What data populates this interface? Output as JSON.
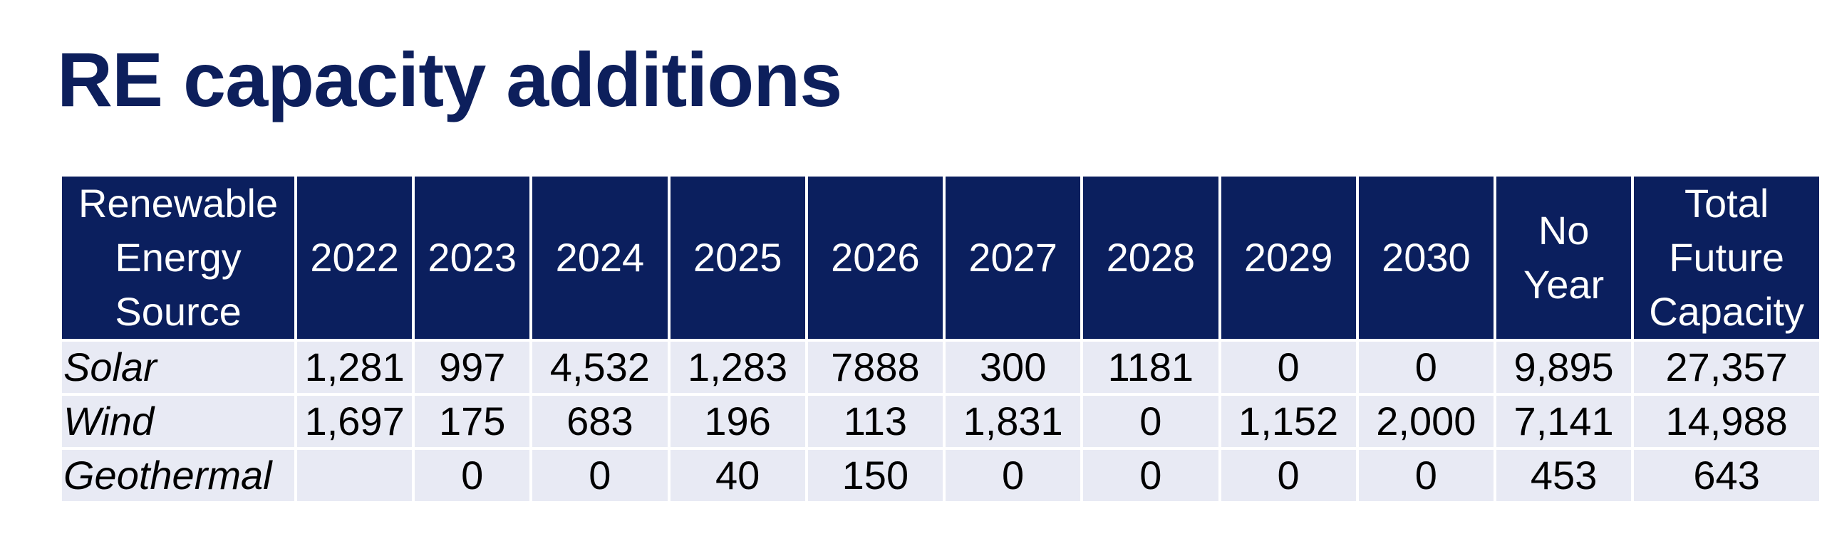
{
  "title": "RE capacity additions",
  "table": {
    "headers": [
      "Renewable Energy Source",
      "2022",
      "2023",
      "2024",
      "2025",
      "2026",
      "2027",
      "2028",
      "2029",
      "2030",
      "No Year",
      "Total Future Capacity"
    ],
    "rows": [
      [
        "Solar",
        "1,281",
        "997",
        "4,532",
        "1,283",
        "7888",
        "300",
        "1181",
        "0",
        "0",
        "9,895",
        "27,357"
      ],
      [
        "Wind",
        "1,697",
        "175",
        "683",
        "196",
        "113",
        "1,831",
        "0",
        "1,152",
        "2,000",
        "7,141",
        "14,988"
      ],
      [
        "Geothermal",
        "",
        "0",
        "0",
        "40",
        "150",
        "0",
        "0",
        "0",
        "0",
        "453",
        "643"
      ]
    ]
  },
  "colors": {
    "title": "#0d1f5c",
    "header_bg": "#0b1f5e",
    "header_text": "#ffffff",
    "row_bg": "#e8eaf4",
    "grid": "#ffffff"
  }
}
